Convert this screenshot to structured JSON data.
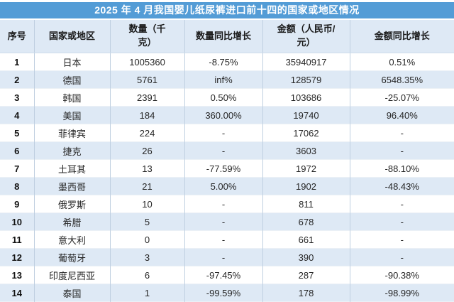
{
  "colors": {
    "title_bg": "#539CD6",
    "title_text": "#FFFFFF",
    "header_bg": "#DEE9F5",
    "row_alt_bg": "#DEE9F5",
    "row_bg": "#FFFFFF",
    "grid_border": "#BFCFE0"
  },
  "chart_data": {
    "type": "table",
    "title": "2025 年 4 月我国婴儿纸尿裤进口前十四的国家或地区情况",
    "columns": [
      "序号",
      "国家或地区",
      "数量（千克）",
      "数量同比增长",
      "金额（人民币/元）",
      "金额同比增长"
    ],
    "column_keys": [
      "rank",
      "country",
      "quantity_kg",
      "quantity_yoy",
      "amount_rmb",
      "amount_yoy"
    ],
    "rows": [
      [
        1,
        "日本",
        1005360,
        "-8.75%",
        35940917,
        "0.51%"
      ],
      [
        2,
        "德国",
        5761,
        "inf%",
        128579,
        "6548.35%"
      ],
      [
        3,
        "韩国",
        2391,
        "0.50%",
        103686,
        "-25.07%"
      ],
      [
        4,
        "美国",
        184,
        "360.00%",
        19740,
        "96.40%"
      ],
      [
        5,
        "菲律宾",
        224,
        "-",
        17062,
        "-"
      ],
      [
        6,
        "捷克",
        26,
        "-",
        3603,
        "-"
      ],
      [
        7,
        "土耳其",
        13,
        "-77.59%",
        1972,
        "-88.10%"
      ],
      [
        8,
        "墨西哥",
        21,
        "5.00%",
        1902,
        "-48.43%"
      ],
      [
        9,
        "俄罗斯",
        10,
        "-",
        811,
        "-"
      ],
      [
        10,
        "希腊",
        5,
        "-",
        678,
        "-"
      ],
      [
        11,
        "意大利",
        0,
        "-",
        661,
        "-"
      ],
      [
        12,
        "葡萄牙",
        3,
        "-",
        390,
        "-"
      ],
      [
        13,
        "印度尼西亚",
        6,
        "-97.45%",
        287,
        "-90.38%"
      ],
      [
        14,
        "泰国",
        1,
        "-99.59%",
        178,
        "-98.99%"
      ]
    ]
  }
}
